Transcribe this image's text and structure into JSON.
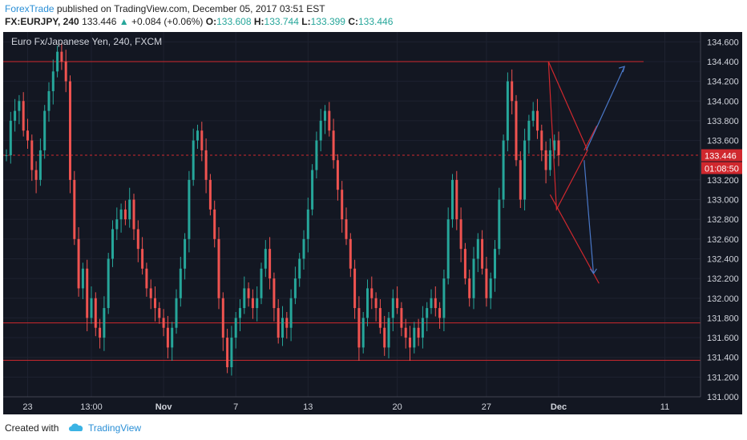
{
  "header": {
    "author": "ForexTrade",
    "published_text": " published on TradingView.com, December 05, 2017 03:51 EST",
    "symbol": "FX:EURJPY, 240",
    "last": "133.446",
    "change": "+0.084 (+0.06%)",
    "open_label": "O:",
    "open": "133.608",
    "high_label": "H:",
    "high": "133.744",
    "low_label": "L:",
    "low": "133.399",
    "close_label": "C:",
    "close": "133.446"
  },
  "footer": {
    "created_with": "Created with",
    "brand": "TradingView"
  },
  "chart_data": {
    "type": "candlestick",
    "title": "Euro Fx/Japanese Yen, 240, FXCM",
    "ylim": [
      131.0,
      134.7
    ],
    "y_ticks": [
      "134.600",
      "134.400",
      "134.200",
      "134.000",
      "133.800",
      "133.600",
      "133.200",
      "133.000",
      "132.800",
      "132.600",
      "132.400",
      "132.200",
      "132.000",
      "131.800",
      "131.600",
      "131.400",
      "131.200",
      "131.000"
    ],
    "x_ticks": [
      {
        "label": "23",
        "i": 5
      },
      {
        "label": "13:00",
        "i": 20
      },
      {
        "label": "Nov",
        "i": 37
      },
      {
        "label": "7",
        "i": 54
      },
      {
        "label": "13",
        "i": 71
      },
      {
        "label": "20",
        "i": 92
      },
      {
        "label": "27",
        "i": 113
      },
      {
        "label": "Dec",
        "i": 130
      },
      {
        "label": "11",
        "i": 155
      }
    ],
    "last_price": "133.446",
    "countdown": "01:08:50",
    "levels": [
      134.4,
      133.45,
      131.75,
      131.37
    ],
    "closes": [
      133.45,
      133.8,
      133.9,
      134.0,
      133.7,
      133.6,
      133.3,
      133.2,
      133.5,
      133.9,
      134.1,
      134.3,
      134.5,
      134.4,
      134.2,
      133.2,
      132.6,
      132.1,
      132.3,
      131.8,
      132.0,
      131.7,
      131.6,
      131.9,
      132.4,
      132.7,
      132.8,
      132.9,
      132.8,
      133.0,
      132.7,
      132.5,
      132.3,
      132.1,
      132.0,
      131.9,
      131.8,
      131.7,
      131.5,
      131.7,
      132.0,
      132.3,
      132.6,
      133.2,
      133.6,
      133.7,
      133.5,
      133.2,
      132.9,
      132.6,
      132.0,
      131.6,
      131.3,
      131.6,
      131.8,
      131.9,
      132.1,
      132.0,
      131.9,
      132.0,
      132.3,
      132.5,
      132.2,
      131.9,
      131.6,
      131.8,
      131.7,
      132.0,
      132.2,
      132.4,
      132.6,
      132.9,
      133.3,
      133.6,
      133.8,
      133.9,
      133.7,
      133.4,
      133.1,
      132.8,
      132.6,
      132.3,
      131.9,
      131.5,
      131.8,
      132.1,
      132.0,
      131.9,
      131.7,
      131.5,
      131.8,
      132.0,
      131.9,
      131.7,
      131.6,
      131.5,
      131.7,
      131.6,
      131.8,
      131.9,
      132.0,
      131.9,
      131.8,
      132.2,
      132.8,
      133.2,
      132.8,
      132.5,
      132.2,
      132.0,
      132.4,
      132.6,
      132.3,
      132.0,
      132.2,
      132.5,
      133.0,
      133.6,
      134.2,
      134.0,
      133.4,
      133.0,
      133.6,
      133.8,
      133.9,
      133.7,
      133.5,
      133.3,
      133.5,
      133.6,
      133.45
    ]
  }
}
